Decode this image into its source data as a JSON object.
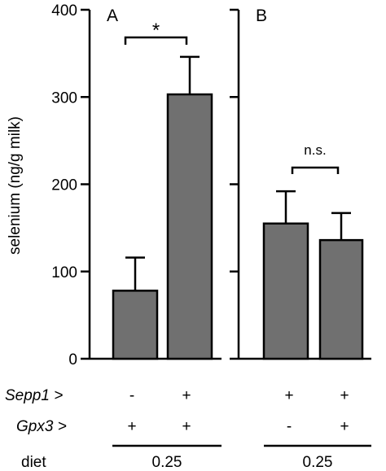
{
  "chart_data": {
    "type": "bar",
    "ylabel": "selenium (ng/g milk)",
    "ylim": [
      0,
      400
    ],
    "yticks": [
      0,
      100,
      200,
      300,
      400
    ],
    "panels": [
      {
        "label": "A",
        "bars": [
          {
            "value": 78,
            "error": 38,
            "color": "#707070"
          },
          {
            "value": 303,
            "error": 43,
            "color": "#707070"
          }
        ],
        "significance": "*",
        "genotype": {
          "sepp1": [
            "-",
            "+"
          ],
          "gpx3": [
            "+",
            "+"
          ]
        },
        "diet": "0.25"
      },
      {
        "label": "B",
        "bars": [
          {
            "value": 155,
            "error": 37,
            "color": "#707070"
          },
          {
            "value": 136,
            "error": 31,
            "color": "#707070"
          }
        ],
        "significance": "n.s.",
        "genotype": {
          "sepp1": [
            "+",
            "+"
          ],
          "gpx3": [
            "-",
            "+"
          ]
        },
        "diet": "0.25"
      }
    ],
    "row_labels": {
      "sepp1": "Sepp1 >",
      "gpx3": "Gpx3 >",
      "diet": "diet"
    }
  }
}
